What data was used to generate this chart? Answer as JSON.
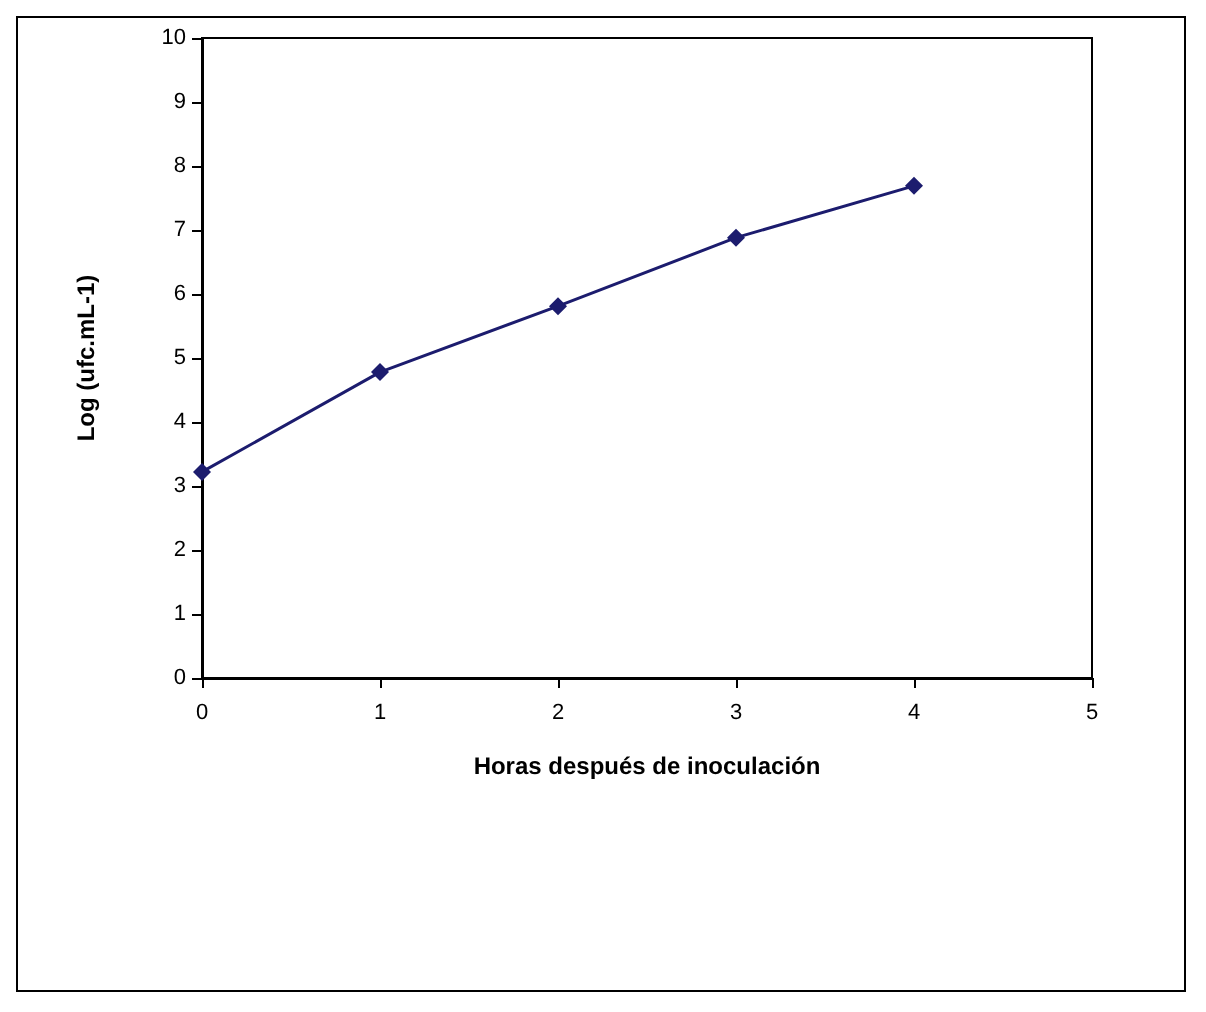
{
  "chart_data": {
    "type": "line",
    "xlabel": "Horas después de inoculación",
    "ylabel": "Log (ufc.mL-1)",
    "x": [
      0,
      1,
      2,
      3,
      4
    ],
    "series": [
      {
        "color": "#1c1c6e",
        "values": [
          3.22,
          4.78,
          5.81,
          6.88,
          7.69
        ]
      }
    ],
    "xlim": [
      0,
      5
    ],
    "xticks": [
      0,
      1,
      2,
      3,
      4,
      5
    ],
    "ylim": [
      0,
      10
    ],
    "yticks": [
      0,
      1,
      2,
      3,
      4,
      5,
      6,
      7,
      8,
      9,
      10
    ],
    "grid": false,
    "marker": "diamond",
    "line_style": "solid"
  }
}
